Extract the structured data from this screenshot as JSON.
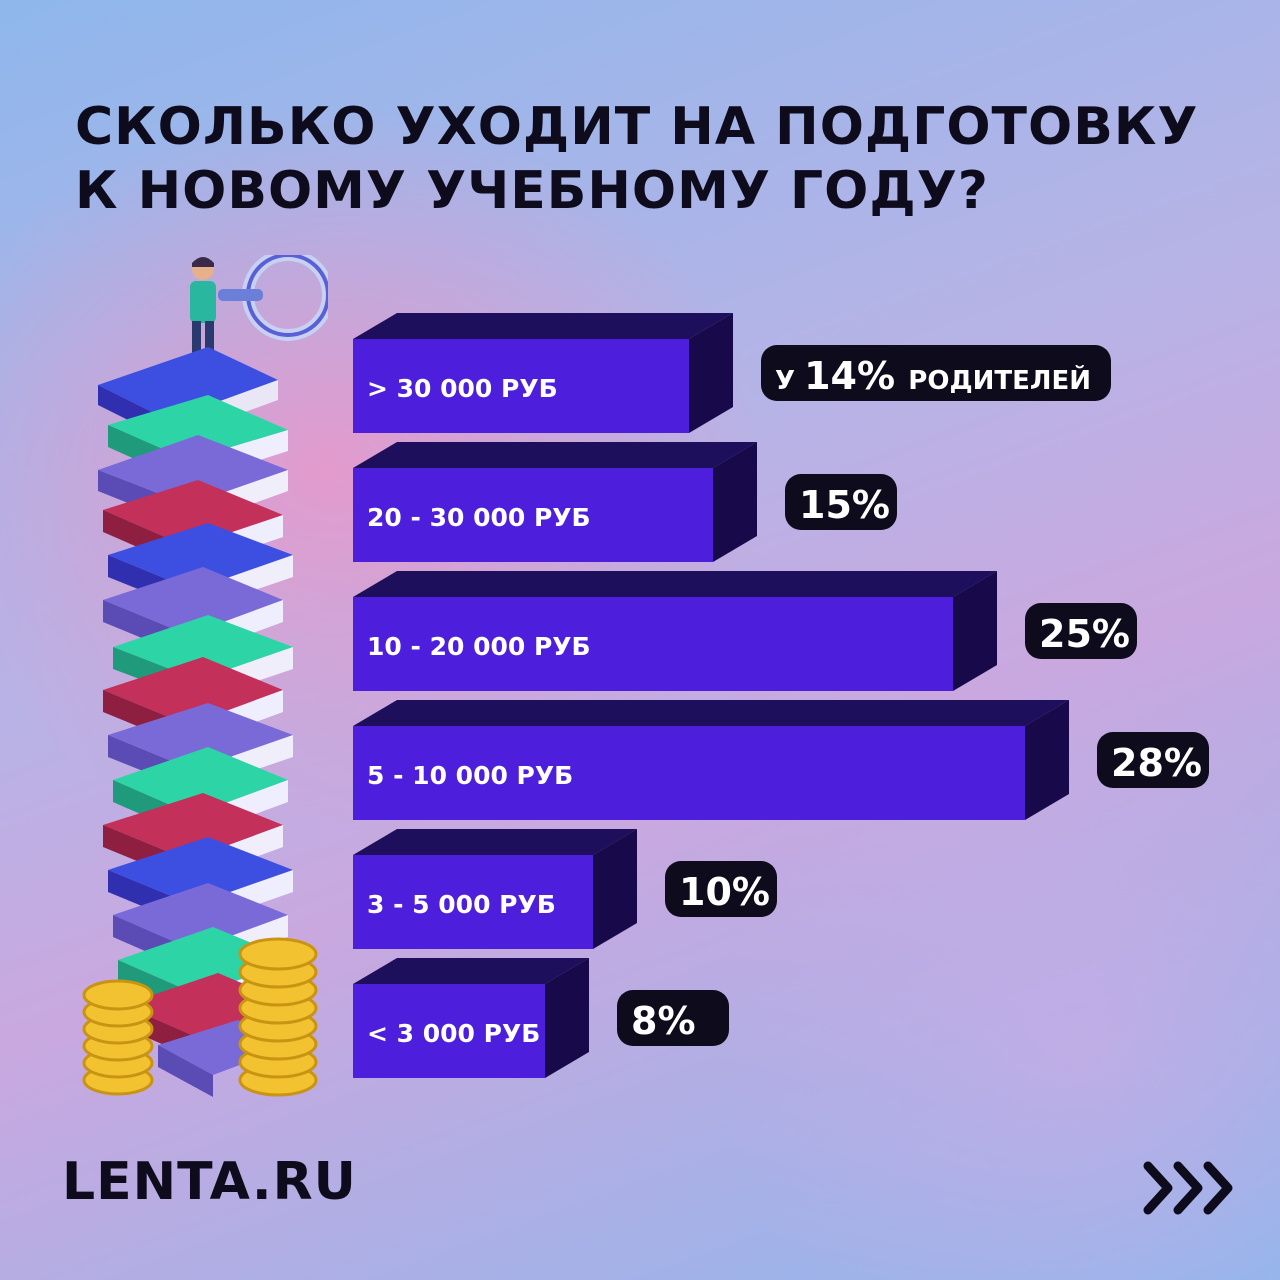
{
  "title": {
    "line1": "СКОЛЬКО УХОДИТ НА ПОДГОТОВКУ",
    "line2": "К НОВОМУ УЧЕБНОМУ ГОДУ?"
  },
  "brand": {
    "logo": "LENTA.RU"
  },
  "icons": {
    "next": "triple-chevron-right-icon",
    "illustration": "book-stack-with-person-and-coins"
  },
  "colors": {
    "bar_front": "#4d1fdc",
    "bar_top": "#1e0f5c",
    "bar_side": "#17094a",
    "badge_bg": "#0d0b1c",
    "badge_text": "#ffffff",
    "text_dark": "#0d0b1c"
  },
  "chart_data": {
    "type": "bar",
    "orientation": "horizontal",
    "categories": [
      "> 30 000 РУБ",
      "20 - 30 000 РУБ",
      "10 - 20 000 РУБ",
      "5 - 10 000 РУБ",
      "3 - 5 000 РУБ",
      "< 3 000 РУБ"
    ],
    "values": [
      14,
      15,
      25,
      28,
      10,
      8
    ],
    "unit": "%",
    "first_label_prefix": "У",
    "first_label_suffix": "РОДИТЕЛЕЙ"
  }
}
